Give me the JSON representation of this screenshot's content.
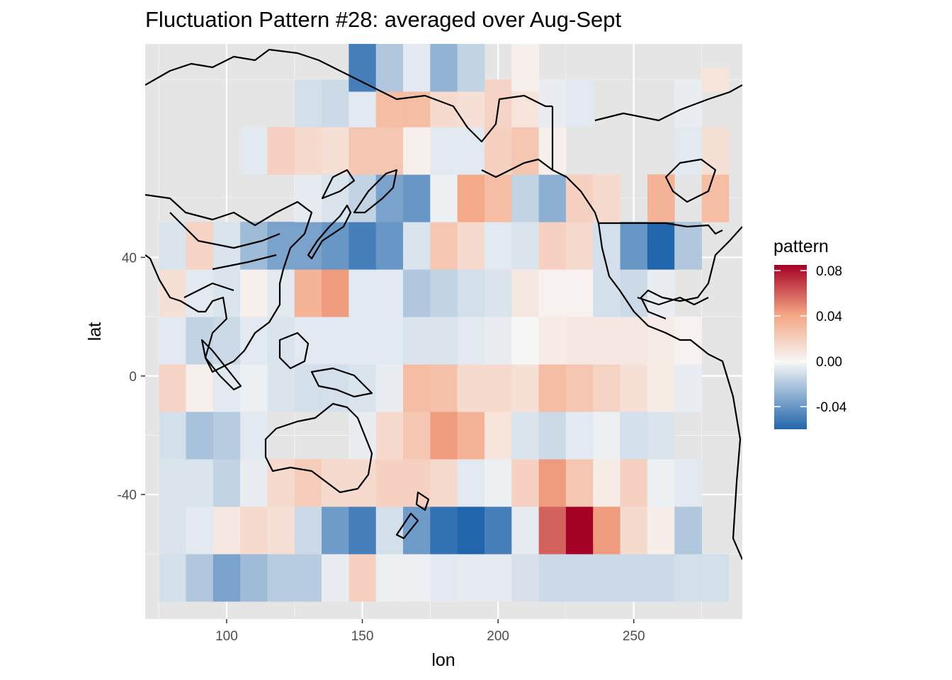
{
  "chart_data": {
    "type": "heatmap",
    "title": "Fluctuation Pattern #28: averaged over Aug-Sept",
    "xlabel": "lon",
    "ylabel": "lat",
    "xlim": [
      70,
      290
    ],
    "ylim": [
      -82,
      112
    ],
    "x_ticks": [
      100,
      150,
      200,
      250
    ],
    "y_ticks": [
      -40,
      0,
      40
    ],
    "grid": true,
    "panel_background": "#e5e5e5",
    "cell_width_deg": 10,
    "cell_height_deg": 16,
    "legend": {
      "title": "pattern",
      "placement": "right",
      "range": [
        -0.06,
        0.085
      ],
      "ticks": [
        "-0.04",
        "0.00",
        "0.04",
        "0.08"
      ],
      "tick_values": [
        -0.04,
        0.0,
        0.04,
        0.08
      ],
      "colors": {
        "low": "#2166ac",
        "mid": "#f7f7f7",
        "high": "#a50026"
      }
    },
    "row_centers_lat": [
      -68,
      -52,
      -36,
      -20,
      -4,
      12,
      28,
      44,
      60,
      76,
      92
    ],
    "rows": [
      {
        "lat": -68,
        "lon_start": 80,
        "values": [
          -0.01,
          -0.02,
          -0.035,
          -0.025,
          -0.018,
          -0.018,
          -0.004,
          0.02,
          -0.003,
          -0.003,
          -0.006,
          -0.005,
          -0.005,
          -0.009,
          -0.012,
          -0.012,
          -0.012,
          -0.012,
          -0.012,
          -0.01,
          -0.01
        ]
      },
      {
        "lat": -52,
        "lon_start": 80,
        "values": [
          -0.008,
          -0.006,
          0.008,
          0.015,
          0.012,
          -0.012,
          -0.038,
          -0.05,
          -0.01,
          -0.038,
          -0.055,
          -0.07,
          -0.05,
          -0.005,
          0.06,
          0.085,
          0.045,
          0.015,
          0.005,
          -0.02,
          null
        ]
      },
      {
        "lat": -36,
        "lon_start": 80,
        "values": [
          -0.008,
          -0.008,
          -0.015,
          -0.004,
          0.015,
          0.022,
          0.015,
          0.015,
          0.02,
          0.02,
          0.015,
          -0.006,
          -0.003,
          0.02,
          0.045,
          0.025,
          0.006,
          0.02,
          -0.003,
          -0.006,
          null
        ]
      },
      {
        "lat": -20,
        "lon_start": 80,
        "values": [
          -0.01,
          -0.022,
          -0.018,
          -0.006,
          null,
          null,
          null,
          -0.004,
          0.015,
          0.025,
          0.045,
          0.035,
          0.01,
          -0.008,
          -0.012,
          -0.006,
          -0.003,
          -0.01,
          -0.008,
          null,
          null
        ]
      },
      {
        "lat": -4,
        "lon_start": 80,
        "values": [
          0.018,
          0.004,
          -0.006,
          -0.003,
          -0.008,
          -0.01,
          -0.01,
          -0.008,
          -0.004,
          0.03,
          0.028,
          0.015,
          0.015,
          0.012,
          0.03,
          0.025,
          0.018,
          0.012,
          0.006,
          -0.004,
          null
        ]
      },
      {
        "lat": 12,
        "lon_start": 80,
        "values": [
          -0.006,
          -0.015,
          -0.012,
          -0.006,
          -0.008,
          -0.006,
          -0.006,
          -0.006,
          -0.006,
          -0.008,
          -0.008,
          -0.006,
          -0.004,
          0.0,
          0.006,
          0.008,
          0.008,
          0.008,
          0.006,
          0.003,
          null
        ]
      },
      {
        "lat": 28,
        "lon_start": 80,
        "values": [
          0.012,
          -0.006,
          -0.008,
          0.004,
          -0.006,
          0.035,
          0.045,
          -0.006,
          -0.006,
          -0.02,
          -0.015,
          -0.01,
          -0.008,
          0.008,
          0.003,
          0.003,
          -0.01,
          -0.012,
          -0.004,
          null,
          null
        ]
      },
      {
        "lat": 44,
        "lon_start": 80,
        "values": [
          -0.008,
          0.018,
          -0.008,
          -0.025,
          -0.035,
          -0.035,
          -0.04,
          -0.05,
          -0.04,
          -0.008,
          0.025,
          0.015,
          -0.006,
          -0.008,
          0.02,
          0.015,
          -0.01,
          -0.04,
          -0.06,
          -0.02,
          null
        ]
      },
      {
        "lat": 60,
        "lon_start": 80,
        "values": [
          null,
          null,
          null,
          null,
          null,
          -0.005,
          -0.008,
          -0.015,
          -0.035,
          -0.04,
          -0.003,
          0.04,
          0.03,
          -0.015,
          -0.03,
          0.02,
          0.015,
          null,
          0.035,
          null,
          0.03
        ]
      },
      {
        "lat": 76,
        "lon_start": 80,
        "values": [
          null,
          null,
          null,
          -0.006,
          0.02,
          0.015,
          0.012,
          0.025,
          0.025,
          0.004,
          -0.006,
          -0.006,
          0.02,
          0.025,
          0.004,
          null,
          null,
          null,
          null,
          -0.006,
          0.012
        ]
      },
      {
        "lat": 92,
        "lon_start": 80,
        "values": [
          null,
          null,
          null,
          null,
          null,
          -0.01,
          -0.012,
          -0.006,
          0.03,
          0.03,
          0.015,
          0.012,
          0.018,
          0.01,
          -0.004,
          -0.006,
          null,
          null,
          null,
          -0.004,
          null
        ]
      }
    ],
    "top_rows": [
      {
        "lat": 108,
        "lon_start": 150,
        "values": [
          -0.05,
          -0.02,
          -0.006,
          -0.028,
          -0.015,
          null,
          0.004,
          null,
          null,
          null,
          null,
          null,
          null,
          null
        ]
      },
      {
        "lat": 100,
        "lon_start": 150,
        "values": [
          -0.05,
          -0.02,
          -0.006,
          -0.028,
          -0.015,
          null,
          0.004,
          null,
          null,
          null,
          null,
          null,
          null,
          0.01
        ]
      }
    ]
  }
}
